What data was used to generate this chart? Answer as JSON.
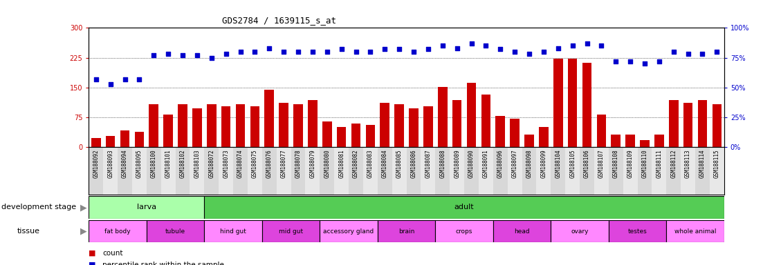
{
  "title": "GDS2784 / 1639115_s_at",
  "samples": [
    "GSM188092",
    "GSM188093",
    "GSM188094",
    "GSM188095",
    "GSM188100",
    "GSM188101",
    "GSM188102",
    "GSM188103",
    "GSM188072",
    "GSM188073",
    "GSM188074",
    "GSM188075",
    "GSM188076",
    "GSM188077",
    "GSM188078",
    "GSM188079",
    "GSM188080",
    "GSM188081",
    "GSM188082",
    "GSM188083",
    "GSM188084",
    "GSM188085",
    "GSM188086",
    "GSM188087",
    "GSM188088",
    "GSM188089",
    "GSM188090",
    "GSM188091",
    "GSM188096",
    "GSM188097",
    "GSM188098",
    "GSM188099",
    "GSM188104",
    "GSM188105",
    "GSM188106",
    "GSM188107",
    "GSM188108",
    "GSM188109",
    "GSM188110",
    "GSM188111",
    "GSM188112",
    "GSM188113",
    "GSM188114",
    "GSM188115"
  ],
  "counts": [
    22,
    28,
    42,
    38,
    108,
    82,
    108,
    98,
    108,
    102,
    108,
    102,
    145,
    112,
    108,
    118,
    65,
    50,
    60,
    55,
    112,
    108,
    98,
    102,
    152,
    118,
    162,
    132,
    78,
    72,
    32,
    50,
    222,
    222,
    212,
    82,
    32,
    32,
    18,
    32,
    118,
    112,
    118,
    108
  ],
  "percentiles": [
    57,
    53,
    57,
    57,
    77,
    78,
    77,
    77,
    75,
    78,
    80,
    80,
    83,
    80,
    80,
    80,
    80,
    82,
    80,
    80,
    82,
    82,
    80,
    82,
    85,
    83,
    87,
    85,
    82,
    80,
    78,
    80,
    83,
    85,
    87,
    85,
    72,
    72,
    70,
    72,
    80,
    78,
    78,
    80
  ],
  "left_yticks": [
    0,
    75,
    150,
    225,
    300
  ],
  "right_yticks": [
    0,
    25,
    50,
    75,
    100
  ],
  "left_ylim": [
    0,
    300
  ],
  "right_ylim": [
    0,
    100
  ],
  "bar_color": "#cc0000",
  "dot_color": "#0000cc",
  "bg_color": "#ffffff",
  "grid_color": "#000000",
  "development_stages": [
    {
      "label": "larva",
      "start": 0,
      "end": 8,
      "color": "#aaffaa"
    },
    {
      "label": "adult",
      "start": 8,
      "end": 44,
      "color": "#55cc55"
    }
  ],
  "tissues": [
    {
      "label": "fat body",
      "start": 0,
      "end": 4,
      "color": "#ff88ff"
    },
    {
      "label": "tubule",
      "start": 4,
      "end": 8,
      "color": "#dd44dd"
    },
    {
      "label": "hind gut",
      "start": 8,
      "end": 12,
      "color": "#ff88ff"
    },
    {
      "label": "mid gut",
      "start": 12,
      "end": 16,
      "color": "#dd44dd"
    },
    {
      "label": "accessory gland",
      "start": 16,
      "end": 20,
      "color": "#ff88ff"
    },
    {
      "label": "brain",
      "start": 20,
      "end": 24,
      "color": "#dd44dd"
    },
    {
      "label": "crops",
      "start": 24,
      "end": 28,
      "color": "#ff88ff"
    },
    {
      "label": "head",
      "start": 28,
      "end": 32,
      "color": "#dd44dd"
    },
    {
      "label": "ovary",
      "start": 32,
      "end": 36,
      "color": "#ff88ff"
    },
    {
      "label": "testes",
      "start": 36,
      "end": 40,
      "color": "#dd44dd"
    },
    {
      "label": "whole animal",
      "start": 40,
      "end": 44,
      "color": "#ff88ff"
    }
  ],
  "legend_count_label": "count",
  "legend_pct_label": "percentile rank within the sample",
  "title_fontsize": 9,
  "tick_fontsize": 7,
  "label_fontsize": 8,
  "sample_fontsize": 5.5
}
